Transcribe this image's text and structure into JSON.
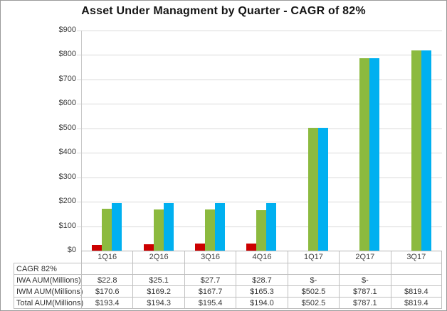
{
  "chart_data": {
    "type": "bar",
    "title": "Asset Under Managment by Quarter - CAGR of 82%",
    "categories": [
      "1Q16",
      "2Q16",
      "3Q16",
      "4Q16",
      "1Q17",
      "2Q17",
      "3Q17"
    ],
    "series": [
      {
        "key": "iwa",
        "name": "IWA AUM(Millions)",
        "color": "#CC0000",
        "values": [
          22.8,
          25.1,
          27.7,
          28.7,
          0,
          0,
          null
        ]
      },
      {
        "key": "iwm",
        "name": "IWM AUM(Millions)",
        "color": "#8CBA3F",
        "values": [
          170.6,
          169.2,
          167.7,
          165.3,
          502.5,
          787.1,
          819.4
        ]
      },
      {
        "key": "total",
        "name": "Total AUM(Millions)",
        "color": "#00B0F0",
        "values": [
          193.4,
          194.3,
          195.4,
          194.0,
          502.5,
          787.1,
          819.4
        ]
      }
    ],
    "xlabel": "",
    "ylabel": "",
    "ylim": [
      0,
      900
    ],
    "ytick_step": 100,
    "ytick_labels": [
      "$900",
      "$800",
      "$700",
      "$600",
      "$500",
      "$400",
      "$300",
      "$200",
      "$100",
      "$0"
    ],
    "grid": true,
    "legend_position": "none",
    "gridline_color": "#D9D9D9",
    "axis_color": "#BFBFBF"
  },
  "data_table": {
    "border_color": "#BFBFBF",
    "corner_label": "",
    "rows": [
      {
        "label": "CAGR 82%",
        "cells": [
          "",
          "",
          "",
          "",
          "",
          "",
          ""
        ]
      },
      {
        "label": "IWA AUM(Millions)",
        "cells": [
          "$22.8",
          "$25.1",
          "$27.7",
          "$28.7",
          "$-",
          "$-",
          ""
        ]
      },
      {
        "label": "IWM AUM(Millions)",
        "cells": [
          "$170.6",
          "$169.2",
          "$167.7",
          "$165.3",
          "$502.5",
          "$787.1",
          "$819.4"
        ]
      },
      {
        "label": "Total AUM(Millions)",
        "cells": [
          "$193.4",
          "$194.3",
          "$195.4",
          "$194.0",
          "$502.5",
          "$787.1",
          "$819.4"
        ]
      }
    ]
  }
}
